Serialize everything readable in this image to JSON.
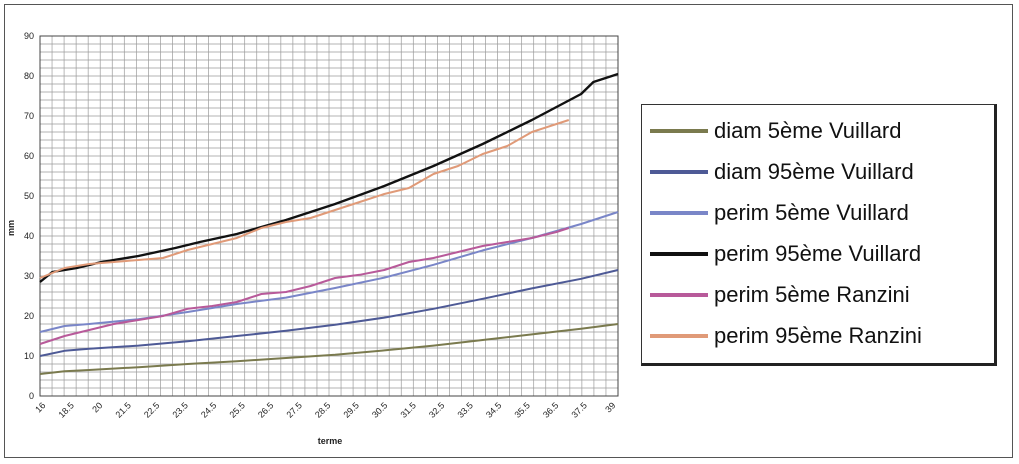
{
  "chart_data": {
    "type": "line",
    "title": "",
    "xlabel": "terme",
    "ylabel": "mm",
    "xlim": [
      16,
      39.5
    ],
    "ylim": [
      0,
      90
    ],
    "yticks": [
      0,
      10,
      20,
      30,
      40,
      50,
      60,
      70,
      80,
      90
    ],
    "xtick_labels": [
      "16",
      "18.5",
      "20",
      "21.5",
      "22.5",
      "23.5",
      "24.5",
      "25.5",
      "26.5",
      "27.5",
      "28.5",
      "29.5",
      "30.5",
      "31.5",
      "32.5",
      "33.5",
      "34.5",
      "35.5",
      "36.5",
      "37.5",
      "39"
    ],
    "grid": true,
    "legend_position": "right",
    "series": [
      {
        "name": "diam 5ème Vuillard",
        "color": "#7a7a4e",
        "x": [
          16,
          17,
          18,
          20,
          22,
          24,
          26,
          28,
          30,
          32,
          34,
          36,
          38,
          39.5
        ],
        "y": [
          5.5,
          6.2,
          6.5,
          7.2,
          8,
          8.7,
          9.5,
          10.3,
          11.4,
          12.6,
          14,
          15.4,
          16.8,
          18
        ]
      },
      {
        "name": "diam 95ème Vuillard",
        "color": "#4e5a96",
        "x": [
          16,
          17,
          18,
          20,
          22,
          24,
          26,
          28,
          30,
          32,
          34,
          36,
          38,
          39.5
        ],
        "y": [
          10,
          11.3,
          11.8,
          12.6,
          13.7,
          15,
          16.3,
          17.8,
          19.6,
          21.8,
          24.3,
          26.9,
          29.3,
          31.5
        ]
      },
      {
        "name": "perim 5ème Vuillard",
        "color": "#7a86c8",
        "x": [
          16,
          17,
          18,
          20,
          22,
          24,
          26,
          28,
          30,
          32,
          34,
          36,
          38,
          39.5
        ],
        "y": [
          16,
          17.5,
          18,
          19.2,
          21,
          23,
          24.6,
          27,
          29.6,
          32.8,
          36.4,
          39.5,
          43,
          46
        ]
      },
      {
        "name": "perim 95ème Vuillard",
        "color": "#111111",
        "x": [
          16,
          16.5,
          17.5,
          18.5,
          20,
          21.5,
          22.5,
          24,
          26,
          28,
          30,
          32,
          34,
          36,
          38,
          38.5,
          39.5
        ],
        "y": [
          28.5,
          31,
          32,
          33.5,
          35,
          37,
          38.5,
          40.5,
          44,
          48,
          52.5,
          57.5,
          63,
          69,
          75.5,
          78.5,
          80.5
        ]
      },
      {
        "name": "perim 5ème Ranzini",
        "color": "#b85a9a",
        "x": [
          16,
          17,
          18,
          19,
          20,
          21,
          22,
          23,
          24,
          25,
          26,
          27,
          28,
          29,
          30,
          31,
          32,
          33,
          34,
          35,
          36,
          37,
          37.5
        ],
        "y": [
          13,
          15,
          16.5,
          18,
          19,
          20,
          21.8,
          22.5,
          23.5,
          25.5,
          26,
          27.5,
          29.5,
          30.3,
          31.5,
          33.5,
          34.5,
          36,
          37.5,
          38.5,
          39.5,
          41,
          42
        ]
      },
      {
        "name": "perim 95ème Ranzini",
        "color": "#e09a78",
        "x": [
          16,
          17,
          18,
          19,
          20,
          21,
          22,
          23,
          24,
          25,
          26,
          27,
          28,
          29,
          30,
          31,
          32,
          33,
          34,
          35,
          36,
          37,
          37.5
        ],
        "y": [
          29.5,
          32,
          33,
          33.5,
          34,
          34.5,
          36.5,
          38,
          39.5,
          42,
          43.5,
          44.5,
          46.5,
          48.5,
          50.5,
          52,
          55.5,
          57.5,
          60.5,
          62.5,
          66,
          68,
          69
        ]
      }
    ]
  }
}
